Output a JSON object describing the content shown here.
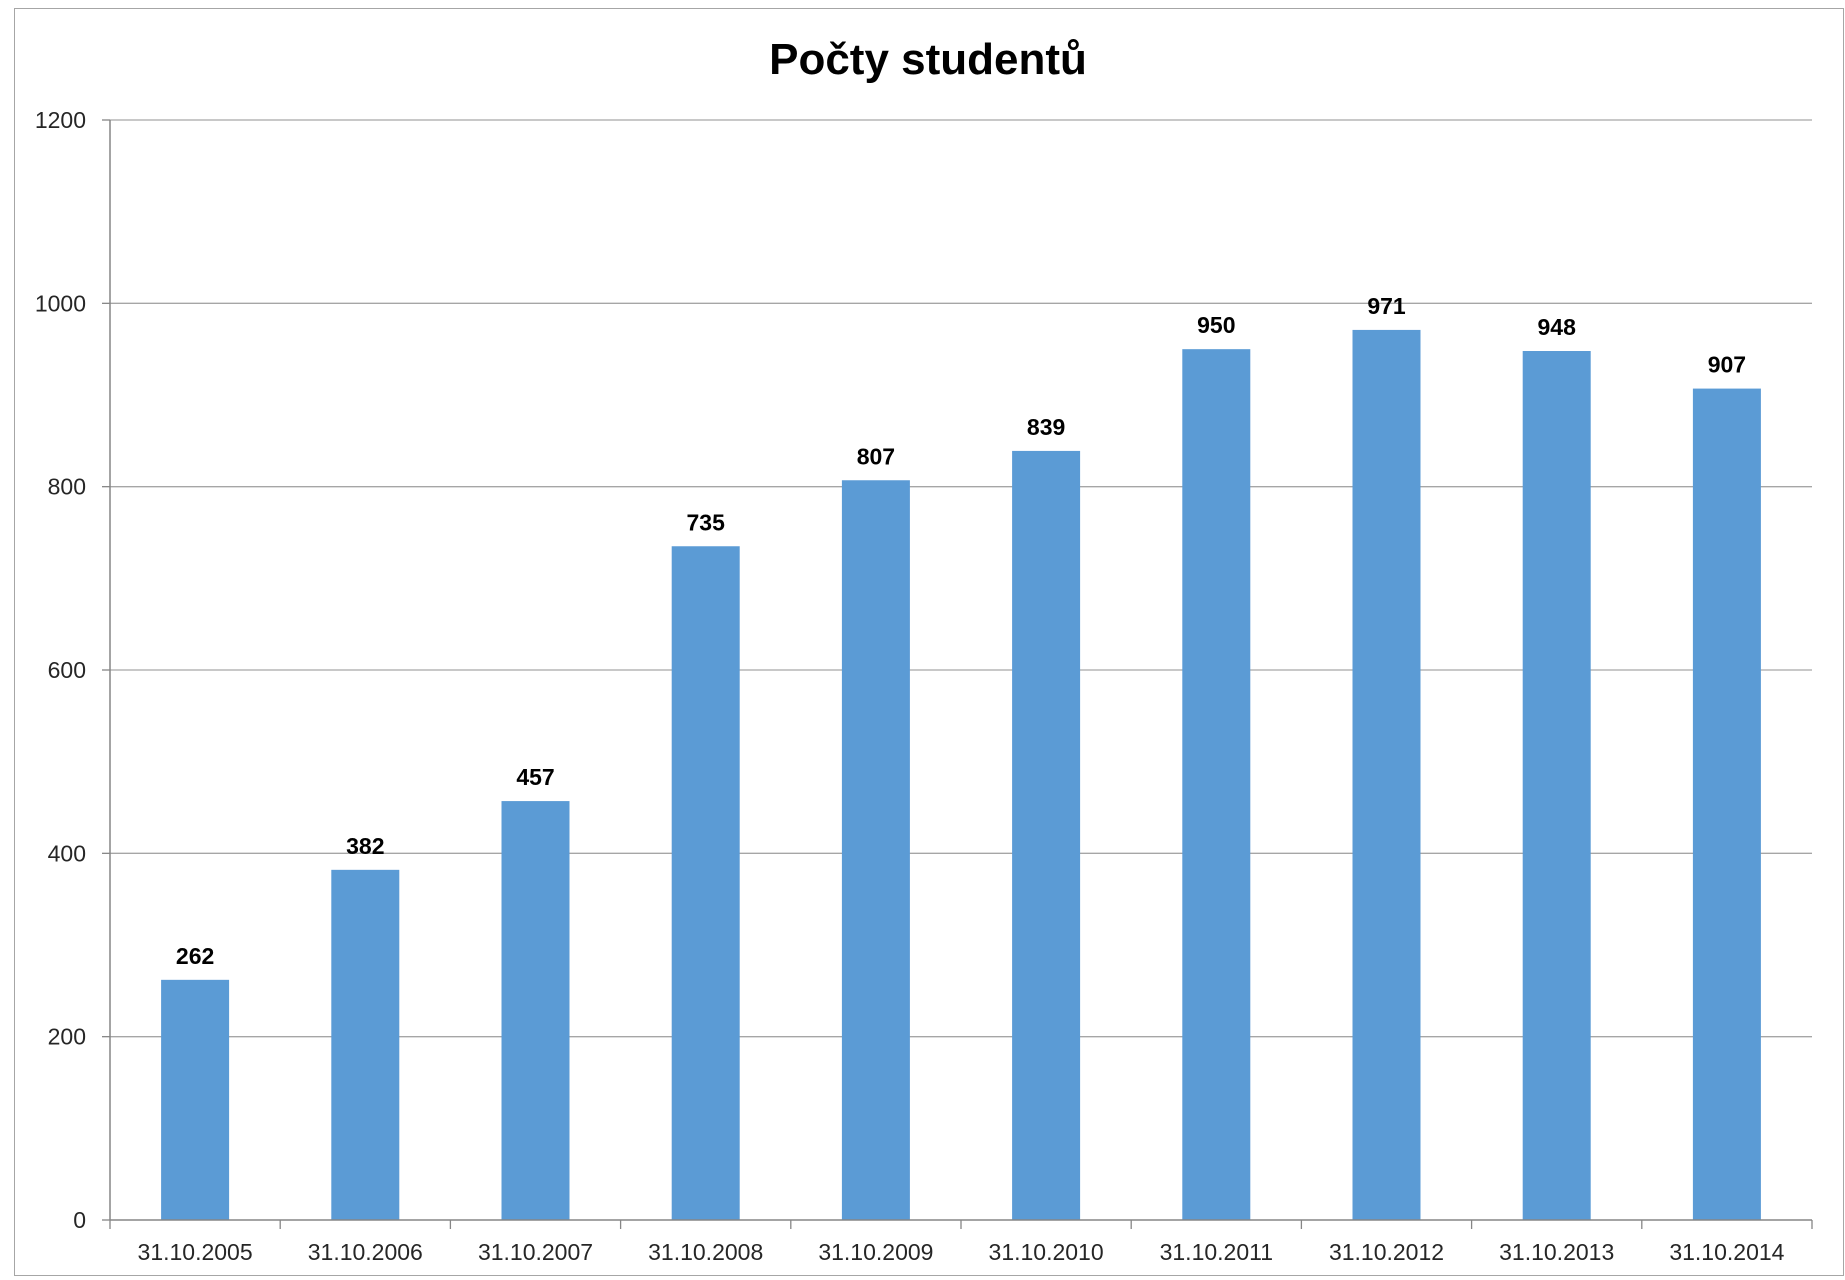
{
  "chart_data": {
    "type": "bar",
    "title": "Počty studentů",
    "xlabel": "",
    "ylabel": "",
    "categories": [
      "31.10.2005",
      "31.10.2006",
      "31.10.2007",
      "31.10.2008",
      "31.10.2009",
      "31.10.2010",
      "31.10.2011",
      "31.10.2012",
      "31.10.2013",
      "31.10.2014"
    ],
    "values": [
      262,
      382,
      457,
      735,
      807,
      839,
      950,
      971,
      948,
      907
    ],
    "data_labels": [
      "262",
      "382",
      "457",
      "735",
      "807",
      "839",
      "950",
      "971",
      "948",
      "907"
    ],
    "ylim": [
      0,
      1200
    ],
    "yticks": [
      0,
      200,
      400,
      600,
      800,
      1000,
      1200
    ],
    "ytick_labels": [
      "0",
      "200",
      "400",
      "600",
      "800",
      "1000",
      "1200"
    ],
    "grid": true,
    "legend": "none",
    "bar_color": "#5b9bd5",
    "gridline_color": "#a6a6a6",
    "axis_color": "#868686"
  }
}
